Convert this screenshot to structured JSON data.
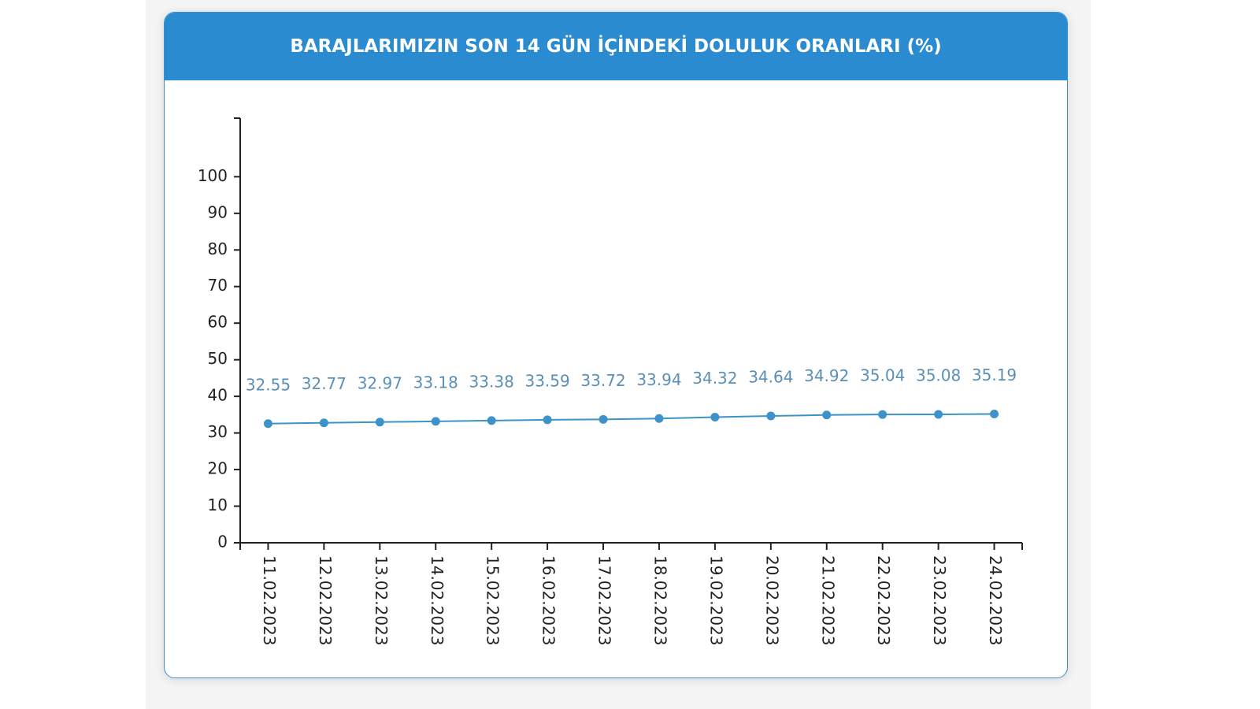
{
  "chart_data": {
    "type": "line",
    "title": "BARAJLARIMIZIN SON 14 GÜN İÇİNDEKİ DOLULUK ORANLARI (%)",
    "categories": [
      "11.02.2023",
      "12.02.2023",
      "13.02.2023",
      "14.02.2023",
      "15.02.2023",
      "16.02.2023",
      "17.02.2023",
      "18.02.2023",
      "19.02.2023",
      "20.02.2023",
      "21.02.2023",
      "22.02.2023",
      "23.02.2023",
      "24.02.2023"
    ],
    "values": [
      32.55,
      32.77,
      32.97,
      33.18,
      33.38,
      33.59,
      33.72,
      33.94,
      34.32,
      34.64,
      34.92,
      35.04,
      35.08,
      35.19
    ],
    "color": "#3d93c9",
    "ylim": [
      0,
      116
    ],
    "yticks": [
      0,
      10,
      20,
      30,
      40,
      50,
      60,
      70,
      80,
      90,
      100
    ],
    "grid": false
  }
}
